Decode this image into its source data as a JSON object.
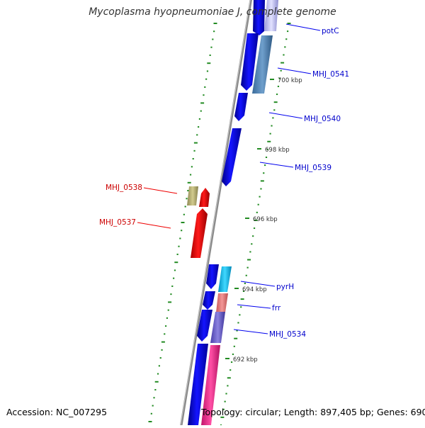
{
  "title": "Mycoplasma hyopneumoniae J, complete genome",
  "accession": "Accession: NC_007295",
  "summary": "Topology: circular; Length: 897,405 bp; Genes: 690",
  "colors": {
    "backbone": "#8a8a8a",
    "tick": "#228b22",
    "forward_gene": "#0000ee",
    "reverse_gene": "#ee0000",
    "forward_label": "#0000cc",
    "reverse_label": "#cc0000",
    "ruler_label": "#333333"
  },
  "ruler": [
    {
      "label": "700 kbp"
    },
    {
      "label": "698 kbp"
    },
    {
      "label": "696 kbp"
    },
    {
      "label": "694 kbp"
    },
    {
      "label": "692 kbp"
    }
  ],
  "genes": [
    {
      "name": "potC",
      "strand": "forward"
    },
    {
      "name": "MHJ_0541",
      "strand": "forward"
    },
    {
      "name": "MHJ_0540",
      "strand": "forward"
    },
    {
      "name": "MHJ_0539",
      "strand": "forward"
    },
    {
      "name": "MHJ_0538",
      "strand": "reverse"
    },
    {
      "name": "MHJ_0537",
      "strand": "reverse"
    },
    {
      "name": "pyrH",
      "strand": "forward"
    },
    {
      "name": "frr",
      "strand": "forward"
    },
    {
      "name": "MHJ_0534",
      "strand": "forward"
    }
  ]
}
